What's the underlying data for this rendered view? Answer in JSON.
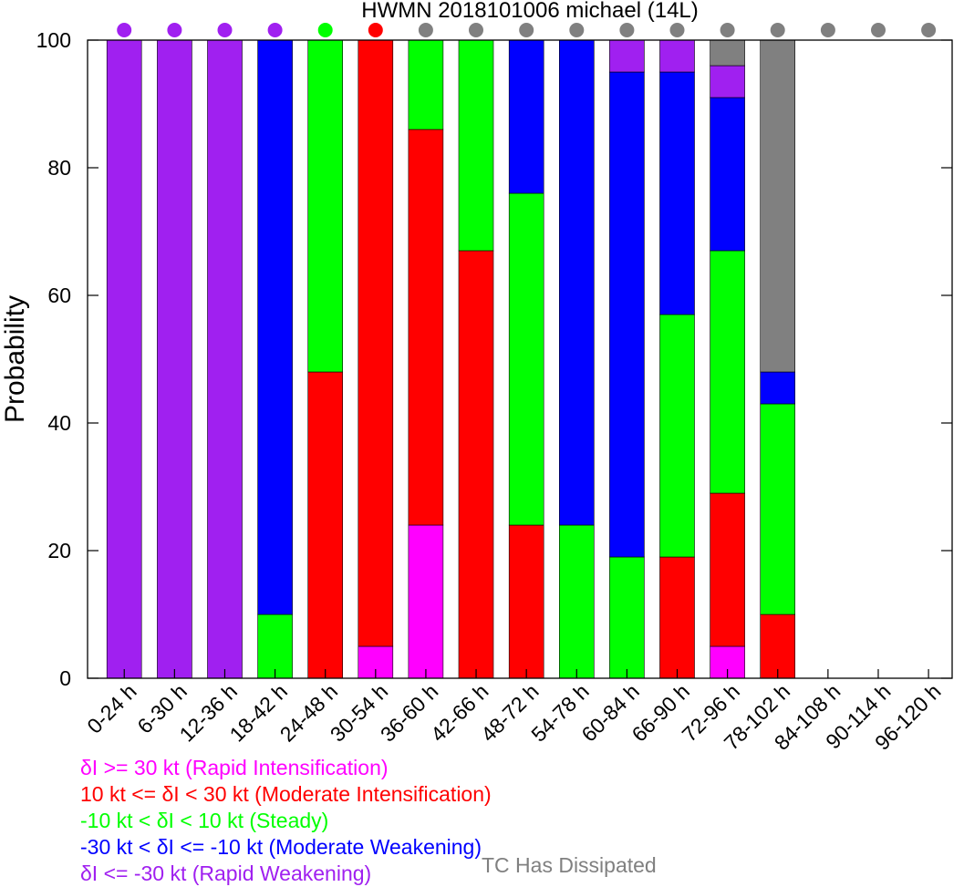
{
  "chart_data": {
    "type": "bar",
    "stacked": true,
    "title": "HWMN 2018101006 michael (14L)",
    "ylabel": "Probability",
    "xlabel": "",
    "ylim": [
      0,
      100
    ],
    "yticks": [
      "0",
      "20",
      "40",
      "60",
      "80",
      "100"
    ],
    "categories": [
      "0-24 h",
      "6-30 h",
      "12-36 h",
      "18-42 h",
      "24-48 h",
      "30-54 h",
      "36-60 h",
      "42-66 h",
      "48-72 h",
      "54-78 h",
      "60-84 h",
      "66-90 h",
      "72-96 h",
      "78-102 h",
      "84-108 h",
      "90-114 h",
      "96-120 h"
    ],
    "series": [
      {
        "key": "ri",
        "color": "#ff00ff",
        "values": [
          0,
          0,
          0,
          0,
          0,
          5,
          24,
          0,
          0,
          0,
          0,
          0,
          5,
          0,
          0,
          0,
          0
        ]
      },
      {
        "key": "mi",
        "color": "#ff0000",
        "values": [
          0,
          0,
          0,
          0,
          48,
          95,
          62,
          67,
          24,
          0,
          0,
          19,
          24,
          10,
          0,
          0,
          0
        ]
      },
      {
        "key": "st",
        "color": "#00ff00",
        "values": [
          0,
          0,
          0,
          10,
          52,
          0,
          14,
          33,
          52,
          24,
          19,
          38,
          38,
          33,
          0,
          0,
          0
        ]
      },
      {
        "key": "mw",
        "color": "#0000ff",
        "values": [
          0,
          0,
          0,
          90,
          0,
          0,
          0,
          0,
          24,
          76,
          76,
          38,
          24,
          5,
          0,
          0,
          0
        ]
      },
      {
        "key": "rw",
        "color": "#a020f0",
        "values": [
          100,
          100,
          100,
          0,
          0,
          0,
          0,
          0,
          0,
          0,
          5,
          5,
          5,
          0,
          0,
          0,
          0
        ]
      },
      {
        "key": "dis",
        "color": "#808080",
        "values": [
          0,
          0,
          0,
          0,
          0,
          0,
          0,
          0,
          0,
          0,
          0,
          0,
          4,
          52,
          0,
          0,
          0
        ]
      }
    ],
    "dot_colors": [
      "#a020f0",
      "#a020f0",
      "#a020f0",
      "#a020f0",
      "#00ff00",
      "#ff0000",
      "#808080",
      "#808080",
      "#808080",
      "#808080",
      "#808080",
      "#808080",
      "#808080",
      "#808080",
      "#808080",
      "#808080",
      "#808080"
    ],
    "grid": false,
    "legend_position": "bottom-left"
  },
  "legend": {
    "ri": {
      "label": "δI >= 30 kt (Rapid Intensification)",
      "color": "#ff00ff"
    },
    "mi": {
      "label": "10 kt <= δI < 30 kt (Moderate Intensification)",
      "color": "#ff0000"
    },
    "st": {
      "label": "-10 kt < δI < 10 kt (Steady)",
      "color": "#00ff00"
    },
    "mw": {
      "label": "-30 kt < δI <= -10 kt (Moderate Weakening)",
      "color": "#0000ff"
    },
    "rw": {
      "label": "δI <= -30 kt (Rapid Weakening)",
      "color": "#a020f0"
    },
    "dis": {
      "label": "TC Has Dissipated",
      "color": "#808080"
    }
  }
}
